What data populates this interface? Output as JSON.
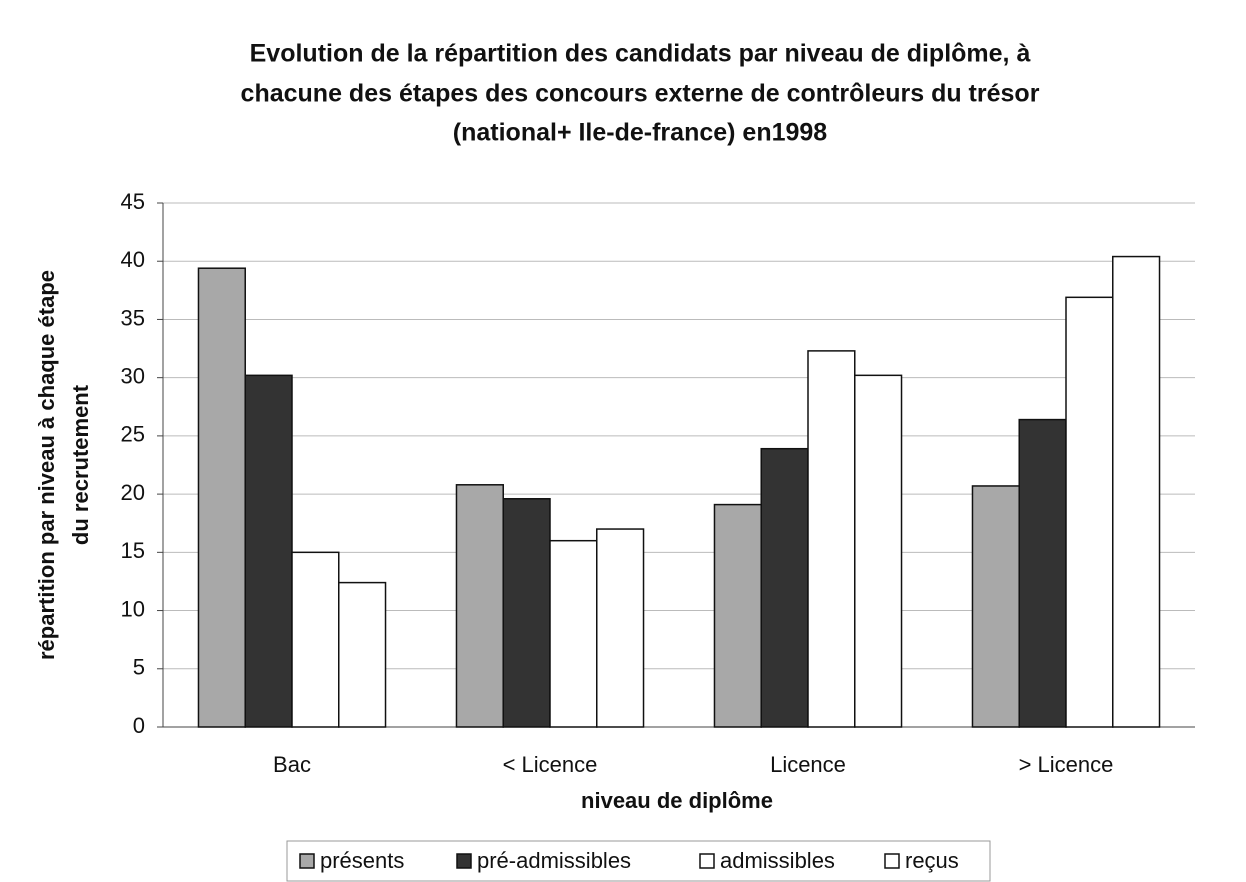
{
  "chart_data": {
    "type": "bar",
    "title": [
      "Evolution de la répartition des candidats par niveau de diplôme, à",
      "chacune des étapes des concours externe de contrôleurs du trésor",
      "(national+ Ile-de-france) en1998"
    ],
    "x_label": "niveau de diplôme",
    "y_label": [
      "répartition par niveau à chaque étape",
      "du recrutement"
    ],
    "categories": [
      "Bac",
      "< Licence",
      "Licence",
      "> Licence"
    ],
    "series": [
      {
        "name": "présents",
        "color": "#a8a8a8",
        "values": [
          39.4,
          20.8,
          19.1,
          20.7
        ]
      },
      {
        "name": "pré-admissibles",
        "color": "#333333",
        "values": [
          30.2,
          19.6,
          23.9,
          26.4
        ]
      },
      {
        "name": "admissibles",
        "color": "#ffffff",
        "values": [
          15.0,
          16.0,
          32.3,
          36.9
        ]
      },
      {
        "name": "reçus",
        "color": "#ffffff",
        "values": [
          12.4,
          17.0,
          30.2,
          40.4
        ]
      }
    ],
    "ylim": [
      0,
      45
    ],
    "yticks": [
      0,
      5,
      10,
      15,
      20,
      25,
      30,
      35,
      40,
      45
    ],
    "grid": true,
    "legend": "bottom"
  }
}
